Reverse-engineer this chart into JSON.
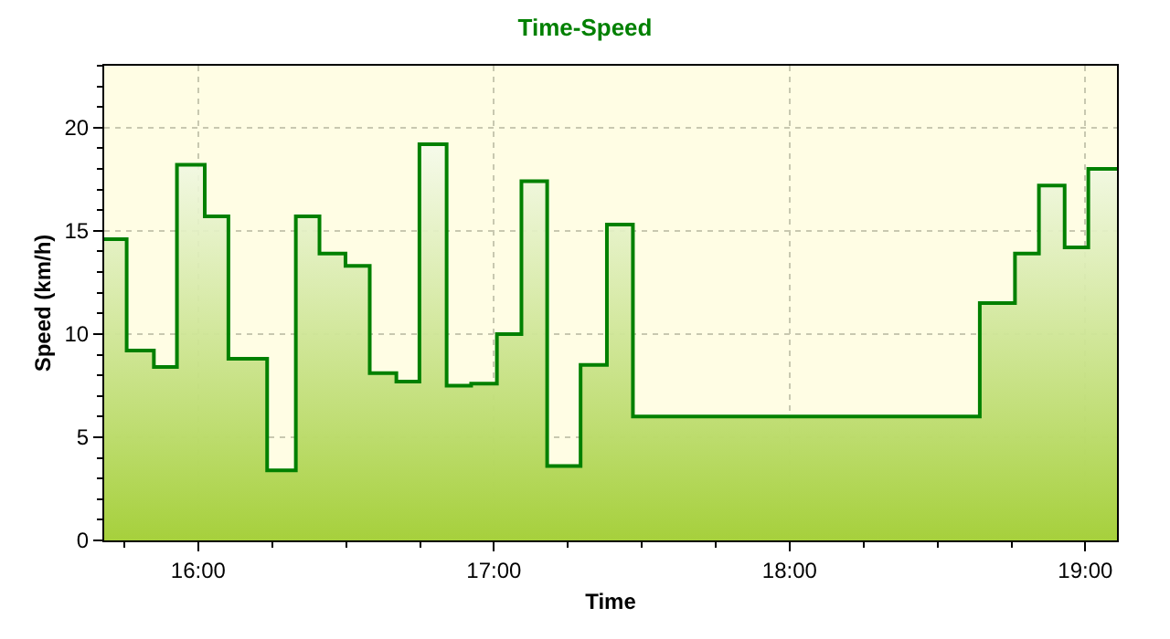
{
  "chart_data": {
    "type": "area",
    "title": "Time-Speed",
    "xlabel": "Time",
    "ylabel": "Speed (km/h)",
    "x": [
      15.682,
      15.758,
      15.758,
      15.85,
      15.85,
      15.928,
      15.928,
      16.022,
      16.022,
      16.102,
      16.102,
      16.233,
      16.233,
      16.33,
      16.33,
      16.41,
      16.41,
      16.498,
      16.498,
      16.58,
      16.58,
      16.67,
      16.67,
      16.748,
      16.748,
      16.84,
      16.84,
      16.923,
      16.923,
      17.01,
      17.01,
      17.093,
      17.093,
      17.18,
      17.18,
      17.293,
      17.293,
      17.382,
      17.382,
      17.47,
      17.47,
      18.643,
      18.643,
      18.762,
      18.762,
      18.843,
      18.843,
      18.93,
      18.93,
      19.01,
      19.01,
      19.107
    ],
    "series": [
      {
        "color": "#008000",
        "values": [
          14.6,
          14.6,
          9.2,
          9.2,
          8.4,
          8.4,
          18.2,
          18.2,
          15.7,
          15.7,
          8.8,
          8.8,
          3.4,
          3.4,
          15.7,
          15.7,
          13.9,
          13.9,
          13.3,
          13.3,
          8.1,
          8.1,
          7.7,
          7.7,
          19.2,
          19.2,
          7.5,
          7.5,
          7.6,
          7.6,
          10.0,
          10.0,
          17.4,
          17.4,
          3.6,
          3.6,
          8.5,
          8.5,
          15.3,
          15.3,
          6.0,
          6.0,
          11.5,
          11.5,
          13.9,
          13.9,
          17.2,
          17.2,
          14.2,
          14.2,
          18.0,
          18.0
        ]
      }
    ],
    "xlim": [
      15.682,
      19.107
    ],
    "xticks": [
      {
        "value": 16,
        "label": "16:00"
      },
      {
        "value": 17,
        "label": "17:00"
      },
      {
        "value": 18,
        "label": "18:00"
      },
      {
        "value": 19,
        "label": "19:00"
      }
    ],
    "ylim": [
      0,
      23
    ],
    "yticks": [
      0,
      5,
      10,
      15,
      20
    ],
    "grid": true
  }
}
